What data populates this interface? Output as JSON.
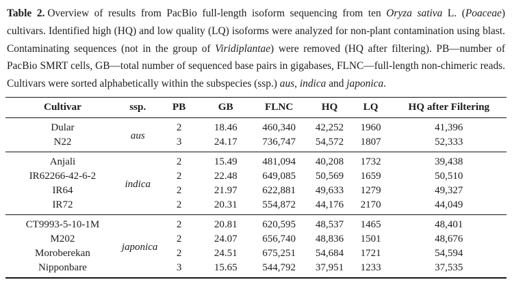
{
  "caption": {
    "label": "Table 2.",
    "segments": [
      {
        "t": "Overview of results from PacBio full-length isoform sequencing from ten "
      },
      {
        "t": "Oryza sativa",
        "i": true
      },
      {
        "t": " L. ("
      },
      {
        "t": "Poaceae",
        "i": true
      },
      {
        "t": ") cultivars. Identified high (HQ) and low quality (LQ) isoforms were analyzed for non-plant contamination using blast. Contaminating sequences (not in the group of "
      },
      {
        "t": "Viridiplantae",
        "i": true
      },
      {
        "t": ") were removed (HQ after filtering). PB—number of PacBio SMRT cells, GB—total number of sequenced base pairs in gigabases, FLNC—full-length non-chimeric reads. Cultivars were sorted alphabetically within the subspecies (ssp.) "
      },
      {
        "t": "aus",
        "i": true
      },
      {
        "t": ", "
      },
      {
        "t": "indica",
        "i": true
      },
      {
        "t": " and "
      },
      {
        "t": "japonica",
        "i": true
      },
      {
        "t": "."
      }
    ]
  },
  "table": {
    "columns": [
      "Cultivar",
      "ssp.",
      "PB",
      "GB",
      "FLNC",
      "HQ",
      "LQ",
      "HQ after Filtering"
    ],
    "column_widths_pct": [
      22.8,
      7.2,
      9.3,
      9.3,
      12.0,
      8.2,
      8.2,
      23.0
    ],
    "groups": [
      {
        "ssp": "aus",
        "rows": [
          {
            "cultivar": "Dular",
            "pb": "2",
            "gb": "18.46",
            "flnc": "460,340",
            "hq": "42,252",
            "lq": "1960",
            "hq_after_filtering": "41,396"
          },
          {
            "cultivar": "N22",
            "pb": "3",
            "gb": "24.17",
            "flnc": "736,747",
            "hq": "54,572",
            "lq": "1807",
            "hq_after_filtering": "52,333"
          }
        ]
      },
      {
        "ssp": "indica",
        "rows": [
          {
            "cultivar": "Anjali",
            "pb": "2",
            "gb": "15.49",
            "flnc": "481,094",
            "hq": "40,208",
            "lq": "1732",
            "hq_after_filtering": "39,438"
          },
          {
            "cultivar": "IR62266-42-6-2",
            "pb": "2",
            "gb": "22.48",
            "flnc": "649,085",
            "hq": "50,569",
            "lq": "1659",
            "hq_after_filtering": "50,510"
          },
          {
            "cultivar": "IR64",
            "pb": "2",
            "gb": "21.97",
            "flnc": "622,881",
            "hq": "49,633",
            "lq": "1279",
            "hq_after_filtering": "49,327"
          },
          {
            "cultivar": "IR72",
            "pb": "2",
            "gb": "20.31",
            "flnc": "554,872",
            "hq": "44,176",
            "lq": "2170",
            "hq_after_filtering": "44,049"
          }
        ]
      },
      {
        "ssp": "japonica",
        "rows": [
          {
            "cultivar": "CT9993-5-10-1M",
            "pb": "2",
            "gb": "20.81",
            "flnc": "620,595",
            "hq": "48,537",
            "lq": "1465",
            "hq_after_filtering": "48,401"
          },
          {
            "cultivar": "M202",
            "pb": "2",
            "gb": "24.07",
            "flnc": "656,740",
            "hq": "48,836",
            "lq": "1501",
            "hq_after_filtering": "48,676"
          },
          {
            "cultivar": "Moroberekan",
            "pb": "2",
            "gb": "24.51",
            "flnc": "675,251",
            "hq": "54,684",
            "lq": "1721",
            "hq_after_filtering": "54,594"
          },
          {
            "cultivar": "Nipponbare",
            "pb": "3",
            "gb": "15.65",
            "flnc": "544,792",
            "hq": "37,951",
            "lq": "1233",
            "hq_after_filtering": "37,535"
          }
        ]
      }
    ]
  },
  "colors": {
    "text": "#1c1c1c",
    "rule": "#141414",
    "background": "#ffffff"
  }
}
